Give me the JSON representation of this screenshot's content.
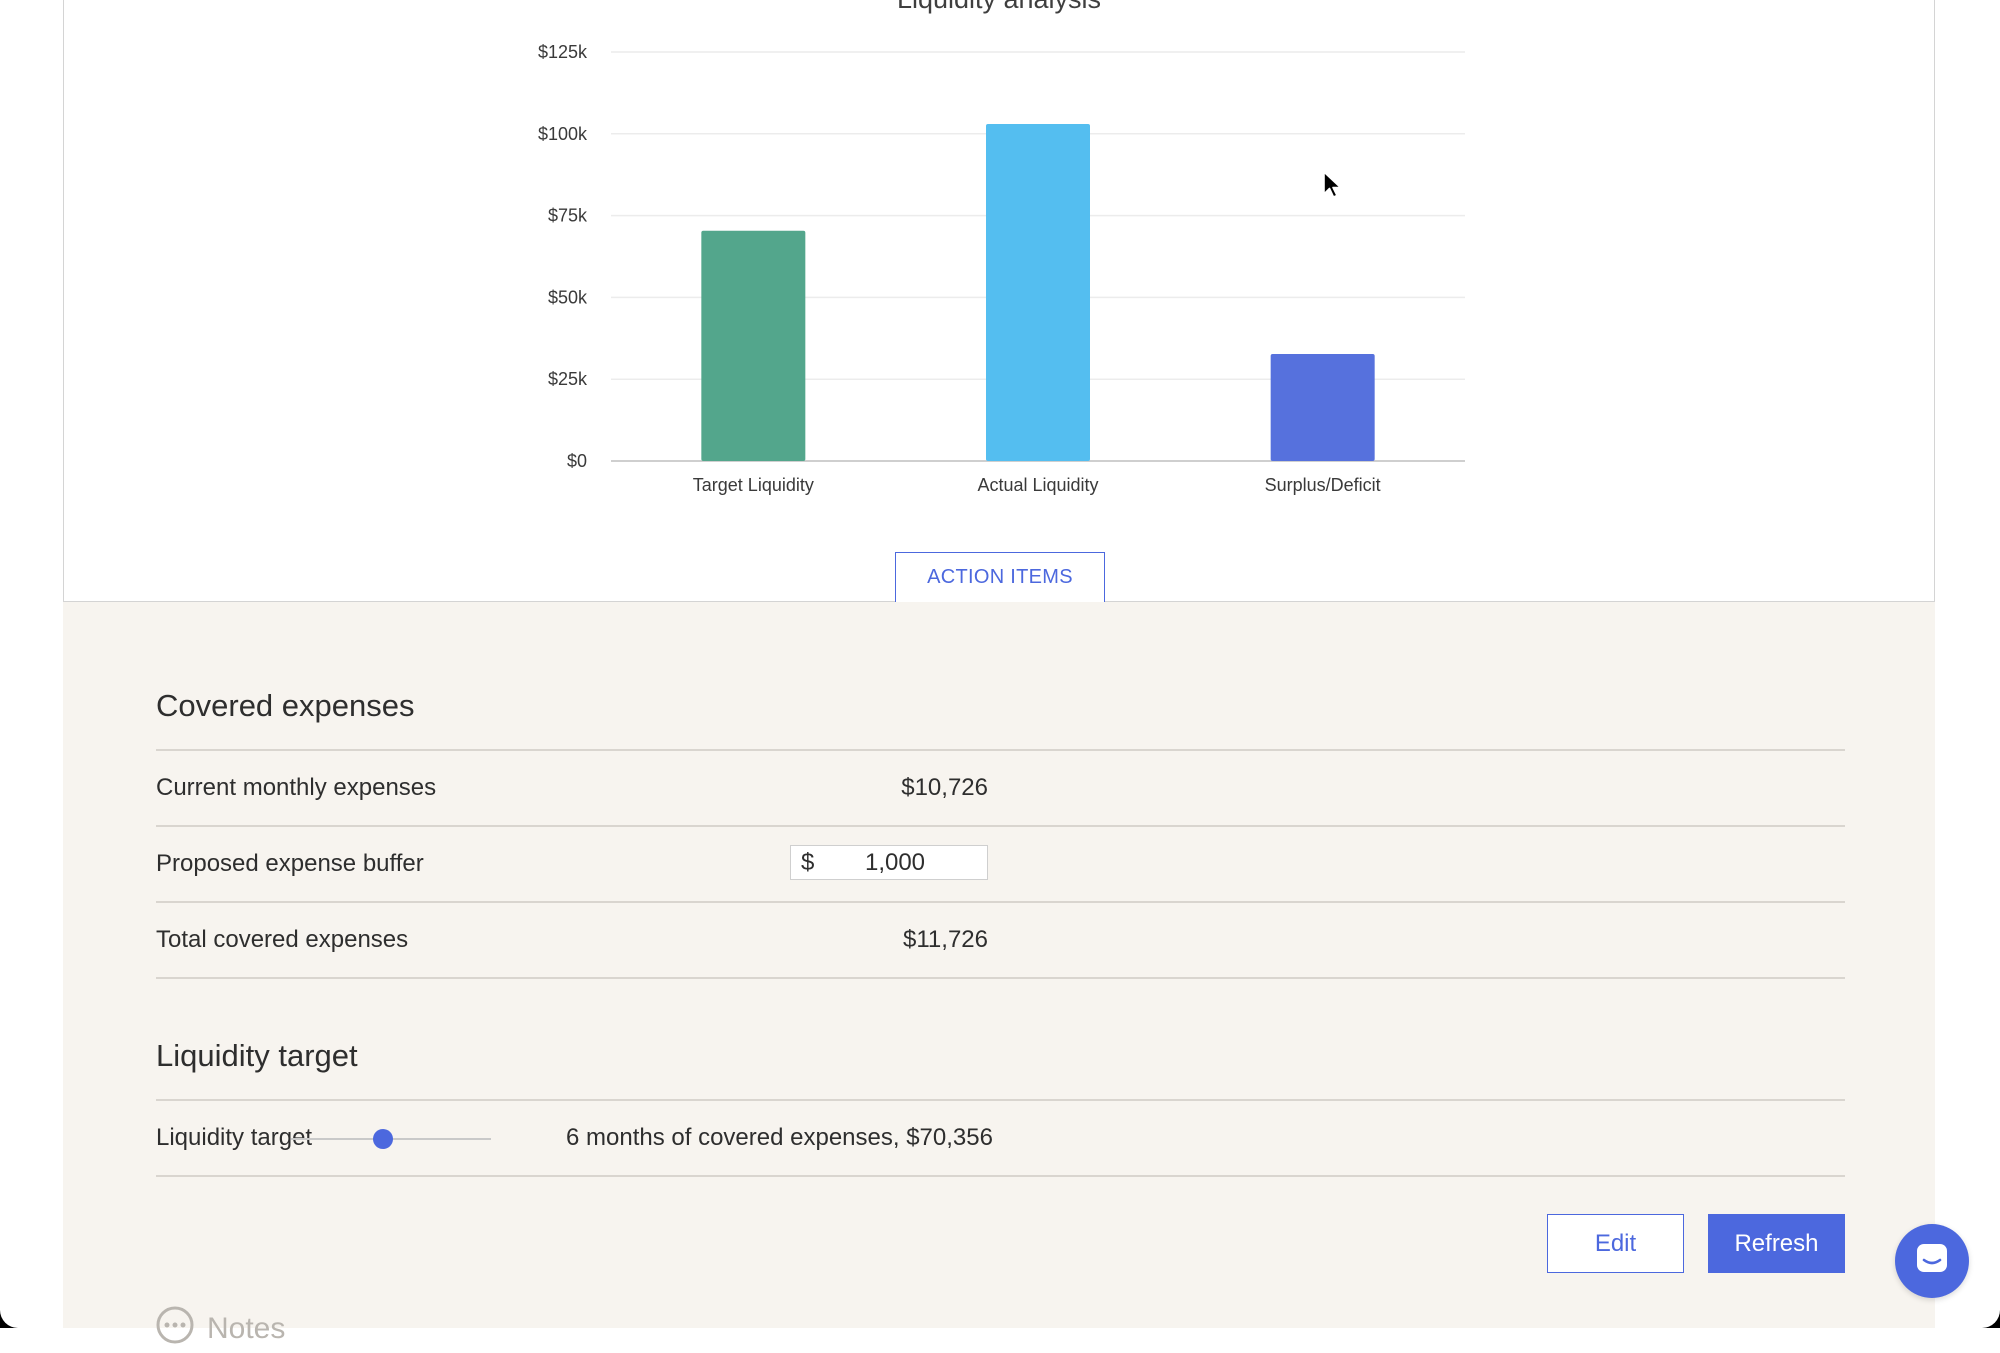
{
  "chart_data": {
    "type": "bar",
    "title": "Liquidity analysis",
    "categories": [
      "Target Liquidity",
      "Actual Liquidity",
      "Surplus/Deficit"
    ],
    "values": [
      70356,
      103000,
      32700
    ],
    "colors": [
      "#53a68c",
      "#54bef0",
      "#5671dd"
    ],
    "ylim": [
      0,
      125000
    ],
    "yticks": [
      0,
      25000,
      50000,
      75000,
      100000,
      125000
    ],
    "ytick_labels": [
      "$0",
      "$25k",
      "$50k",
      "$75k",
      "$100k",
      "$125k"
    ],
    "grid": true,
    "xlabel": "",
    "ylabel": ""
  },
  "action_items_label": "ACTION ITEMS",
  "covered_expenses": {
    "title": "Covered expenses",
    "rows": [
      {
        "label": "Current monthly expenses",
        "value": "$10,726"
      },
      {
        "label": "Proposed expense buffer",
        "currency": "$",
        "input_value": "1,000"
      },
      {
        "label": "Total covered expenses",
        "value": "$11,726"
      }
    ]
  },
  "liquidity_target": {
    "title": "Liquidity target",
    "label": "Liquidity target",
    "slider_fraction": 0.46,
    "description": "6 months of covered expenses, $70,356"
  },
  "buttons": {
    "edit": "Edit",
    "refresh": "Refresh"
  },
  "notes_label": "Notes",
  "accent_color": "#4c68de",
  "icons": {
    "notes": "chat-bubble-dots-icon",
    "chat": "chat-launcher-icon",
    "cursor": "mouse-pointer-icon"
  }
}
